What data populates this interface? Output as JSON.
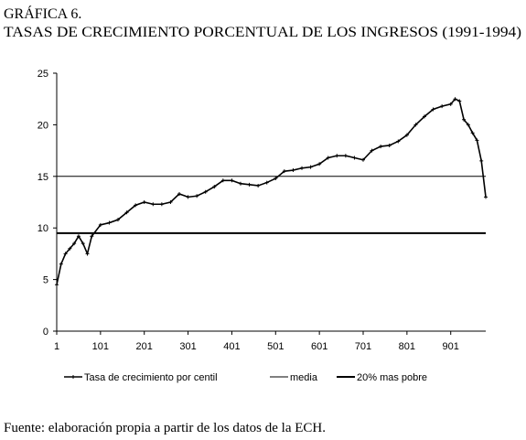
{
  "heading": "GRÁFICA 6.",
  "chart_data": {
    "type": "line",
    "title": "TASAS DE CRECIMIENTO PORCENTUAL DE LOS INGRESOS (1991-1994)",
    "x": [
      1,
      11,
      21,
      31,
      41,
      51,
      61,
      71,
      81,
      101,
      121,
      141,
      161,
      181,
      201,
      221,
      241,
      261,
      281,
      301,
      321,
      341,
      361,
      381,
      401,
      421,
      441,
      461,
      481,
      501,
      521,
      541,
      561,
      581,
      601,
      621,
      641,
      661,
      681,
      701,
      721,
      741,
      761,
      781,
      801,
      821,
      841,
      861,
      881,
      901,
      911,
      921,
      931,
      941,
      951,
      961,
      971,
      981
    ],
    "series": [
      {
        "name": "Tasa de crecimiento por centil",
        "color": "#000000",
        "values": [
          4.5,
          6.5,
          7.5,
          8,
          8.5,
          9.2,
          8.5,
          7.5,
          9.2,
          10.3,
          10.5,
          10.8,
          11.5,
          12.2,
          12.5,
          12.3,
          12.3,
          12.5,
          13.3,
          13,
          13.1,
          13.5,
          14,
          14.6,
          14.6,
          14.3,
          14.2,
          14.1,
          14.4,
          14.8,
          15.5,
          15.6,
          15.8,
          15.9,
          16.2,
          16.8,
          17,
          17,
          16.8,
          16.6,
          17.5,
          17.9,
          18,
          18.4,
          19,
          20,
          20.8,
          21.5,
          21.8,
          22,
          22.5,
          22.3,
          20.5,
          20,
          19.2,
          18.5,
          16.5,
          13
        ]
      }
    ],
    "reference_lines": [
      {
        "name": "media",
        "value": 15,
        "color": "#000000",
        "width": 1
      },
      {
        "name": "20% mas pobre",
        "value": 9.5,
        "color": "#000000",
        "width": 2
      }
    ],
    "xlim": [
      1,
      981
    ],
    "xticks": [
      1,
      101,
      201,
      301,
      401,
      501,
      601,
      701,
      801,
      901
    ],
    "ylim": [
      0,
      25
    ],
    "yticks": [
      0,
      5,
      10,
      15,
      20,
      25
    ],
    "source": "Fuente: elaboración propia a partir de los datos de la ECH."
  }
}
